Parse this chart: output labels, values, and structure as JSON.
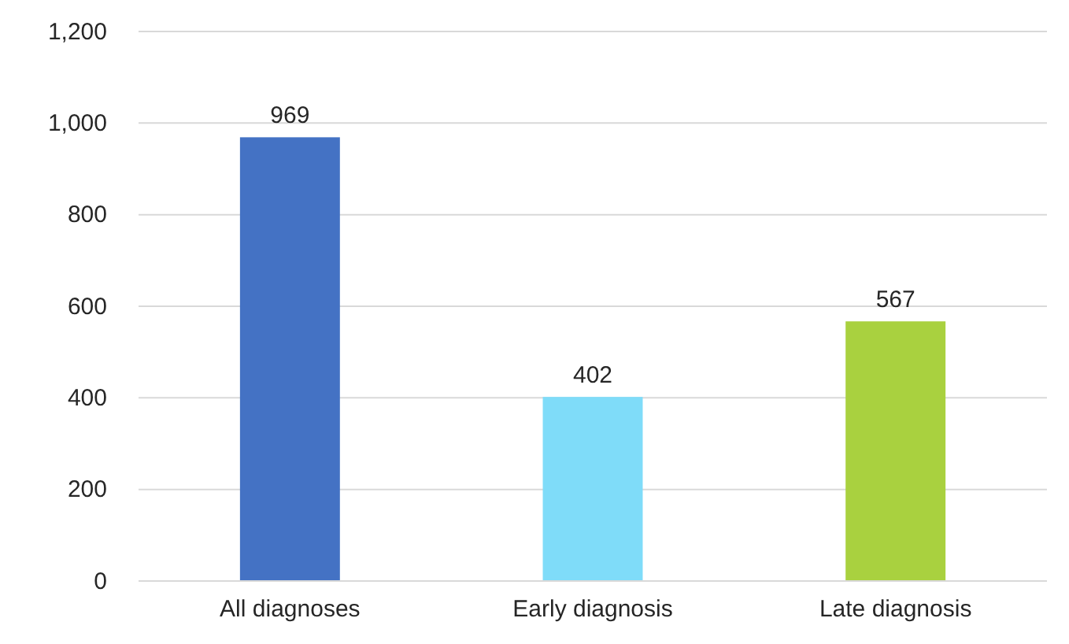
{
  "chart_data": {
    "type": "bar",
    "categories": [
      "All diagnoses",
      "Early diagnosis",
      "Late diagnosis"
    ],
    "values": [
      969,
      402,
      567
    ],
    "colors": [
      "#4472c4",
      "#7fdcf9",
      "#a9d13f"
    ],
    "ylim": [
      0,
      1200
    ],
    "yticks": [
      0,
      {
        "value": 200,
        "label": "200"
      },
      {
        "value": 400,
        "label": "400"
      },
      {
        "value": 600,
        "label": "600"
      },
      {
        "value": 800,
        "label": "800"
      },
      {
        "value": 1000,
        "label": "1,000"
      },
      {
        "value": 1200,
        "label": "1,200"
      }
    ],
    "grid": "y",
    "data_labels": true
  }
}
